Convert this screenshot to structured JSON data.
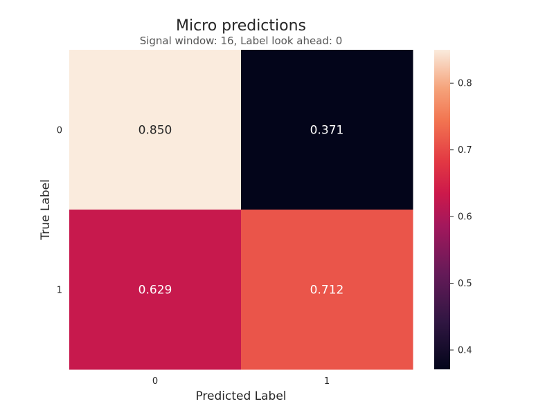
{
  "chart_data": {
    "type": "heatmap",
    "title": "Micro predictions",
    "subtitle": "Signal window: 16, Label look ahead: 0",
    "xlabel": "Predicted Label",
    "ylabel": "True Label",
    "x_categories": [
      "0",
      "1"
    ],
    "y_categories": [
      "0",
      "1"
    ],
    "values": [
      [
        0.85,
        0.371
      ],
      [
        0.629,
        0.712
      ]
    ],
    "value_labels": [
      [
        "0.850",
        "0.371"
      ],
      [
        "0.629",
        "0.712"
      ]
    ],
    "colorbar": {
      "min": 0.371,
      "max": 0.85,
      "ticks": [
        0.4,
        0.5,
        0.6,
        0.7,
        0.8
      ],
      "tick_labels": [
        "0.4",
        "0.5",
        "0.6",
        "0.7",
        "0.8"
      ],
      "colormap": "rocket"
    }
  }
}
